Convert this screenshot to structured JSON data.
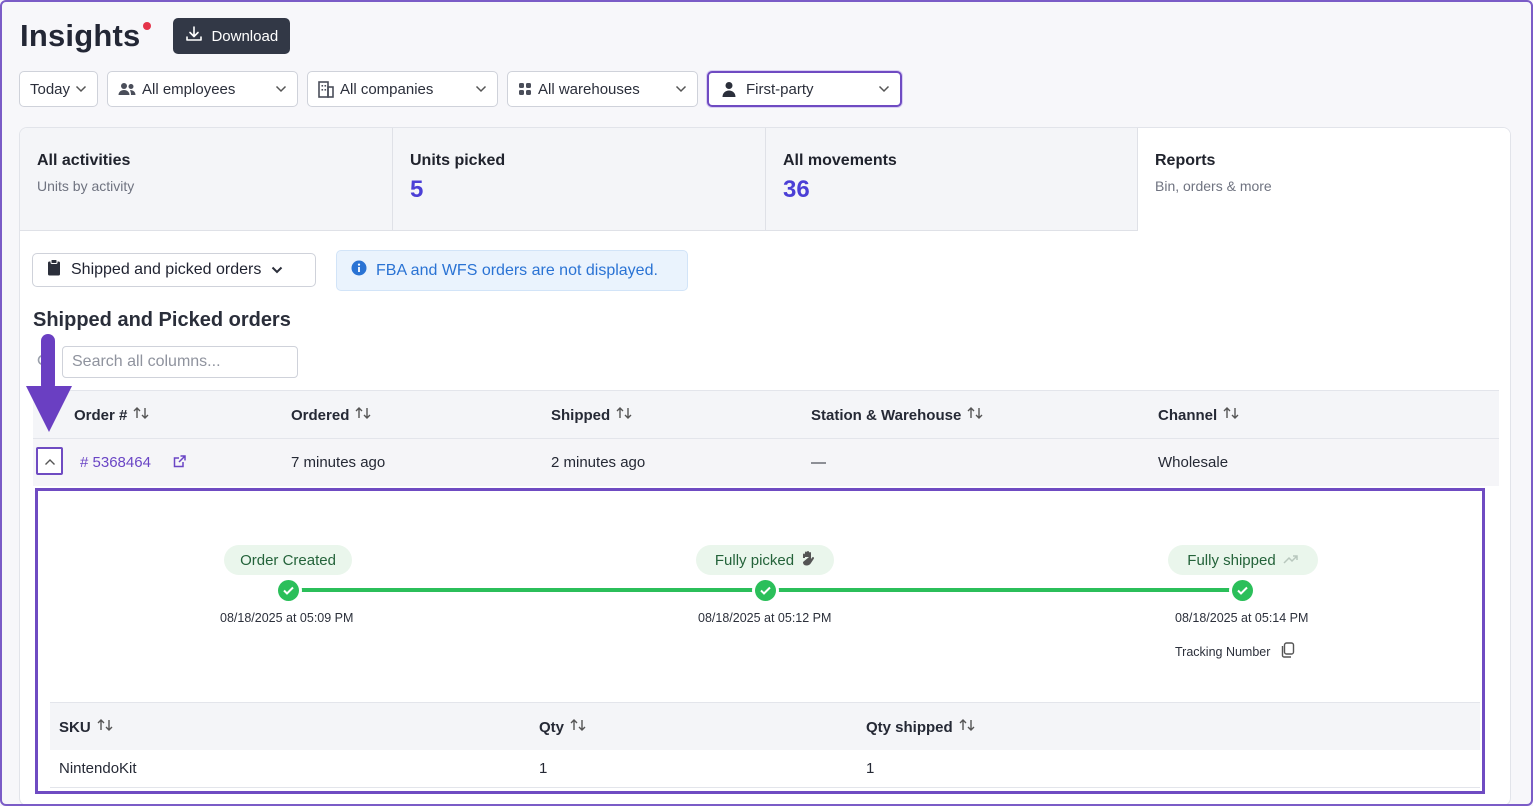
{
  "header": {
    "title": "Insights",
    "download_label": "Download"
  },
  "filters": {
    "date": "Today",
    "employees": "All employees",
    "companies": "All companies",
    "warehouses": "All warehouses",
    "party": "First-party"
  },
  "stats": [
    {
      "title": "All activities",
      "subtitle": "Units by activity"
    },
    {
      "title": "Units picked",
      "value": "5"
    },
    {
      "title": "All movements",
      "value": "36"
    },
    {
      "title": "Reports",
      "subtitle": "Bin, orders & more"
    }
  ],
  "report": {
    "selected": "Shipped and picked orders",
    "notice": "FBA and WFS orders are not displayed.",
    "section_title": "Shipped and Picked orders",
    "search_placeholder": "Search all columns..."
  },
  "table": {
    "columns": [
      "Order #",
      "Ordered",
      "Shipped",
      "Station & Warehouse",
      "Channel"
    ],
    "row": {
      "order": "# 5368464",
      "ordered": "7 minutes ago",
      "shipped": "2 minutes ago",
      "station": "—",
      "channel": "Wholesale"
    }
  },
  "timeline": [
    {
      "label": "Order Created",
      "date": "08/18/2025 at 05:09 PM"
    },
    {
      "label": "Fully picked",
      "date": "08/18/2025 at 05:12 PM"
    },
    {
      "label": "Fully shipped",
      "date": "08/18/2025 at 05:14 PM"
    }
  ],
  "tracking_label": "Tracking Number",
  "sku_table": {
    "columns": [
      "SKU",
      "Qty",
      "Qty shipped"
    ],
    "rows": [
      {
        "sku": "NintendoKit",
        "qty": "1",
        "qty_shipped": "1"
      }
    ]
  },
  "colors": {
    "accent": "#6f4bc2",
    "success": "#2bbf5a",
    "value": "#4b3fd6",
    "info": "#2a73d4"
  }
}
